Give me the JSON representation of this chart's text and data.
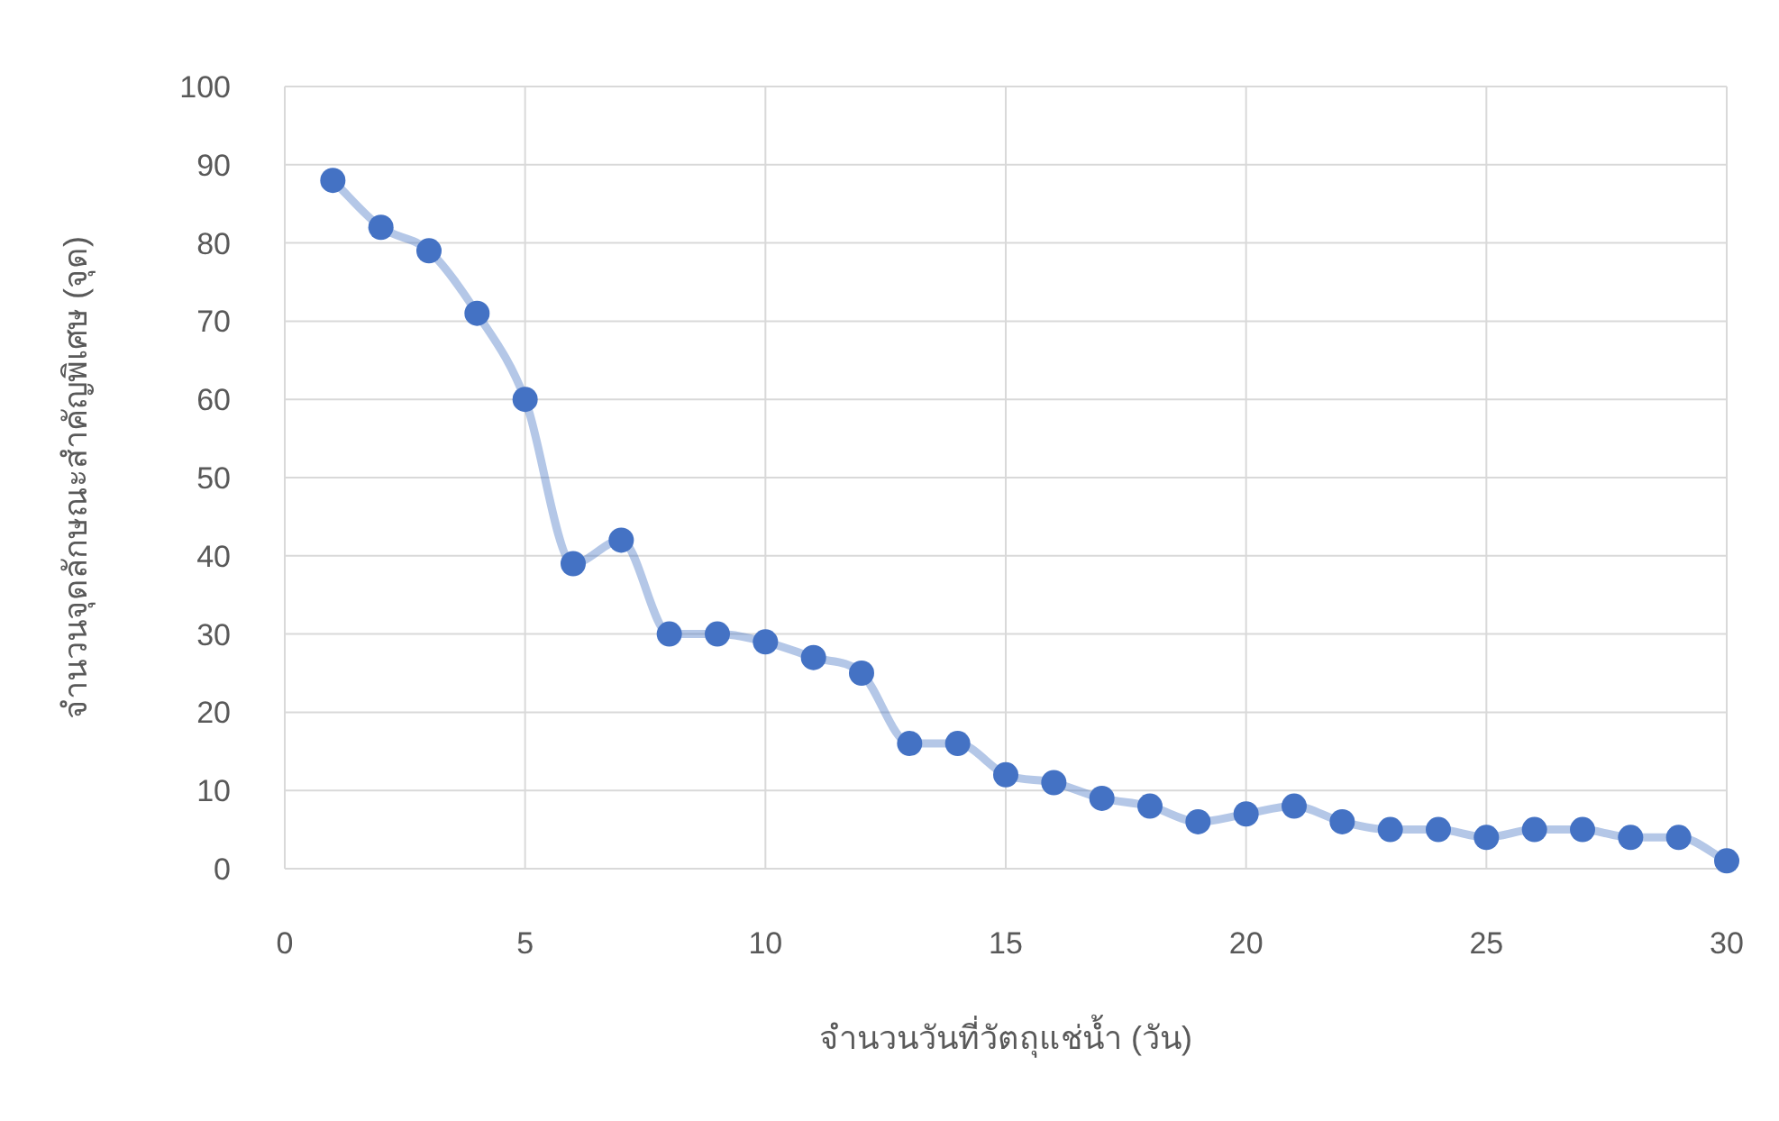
{
  "chart_data": {
    "type": "line",
    "xlabel": "จำนวนวันที่วัตถุแช่น้ำ (วัน)",
    "ylabel": "จำนวนจุดลักษณะสำคัญพิเศษ (จุด)",
    "x": [
      1,
      2,
      3,
      4,
      5,
      6,
      7,
      8,
      9,
      10,
      11,
      12,
      13,
      14,
      15,
      16,
      17,
      18,
      19,
      20,
      21,
      22,
      23,
      24,
      25,
      26,
      27,
      28,
      29,
      30
    ],
    "series": [
      {
        "color": "#4472c4",
        "values": [
          88,
          82,
          79,
          71,
          60,
          39,
          42,
          30,
          30,
          29,
          27,
          25,
          16,
          16,
          12,
          11,
          9,
          8,
          6,
          7,
          8,
          6,
          5,
          5,
          4,
          5,
          5,
          4,
          4,
          1
        ]
      }
    ],
    "xlim": [
      0,
      30
    ],
    "xticks": [
      0,
      5,
      10,
      15,
      20,
      25,
      30
    ],
    "ylim": [
      0,
      100
    ],
    "yticks": [
      0,
      10,
      20,
      30,
      40,
      50,
      60,
      70,
      80,
      90,
      100
    ],
    "grid": true,
    "marker": "circle",
    "line_style": "solid"
  }
}
